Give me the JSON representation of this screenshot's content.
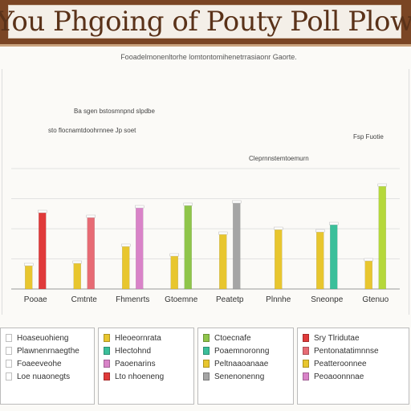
{
  "header": {
    "title": "You Phgoing of Pouty Poll Plow"
  },
  "subtitle": "Fooadelmonenltorhe lomtontomihenetrrasiaonr Gaorte.",
  "notes": {
    "a": "Ba sgen bstosmnpnd slpdbe",
    "b": "sto flocnamtdoohrnnee Jp soet",
    "c": "Fsp Fuotie",
    "d": "Cleprnnstemtoemurn"
  },
  "chart_data": {
    "type": "bar",
    "title": "You Phgoing of Pouty Poll Plow",
    "categories": [
      "Pooae",
      "Cmtnte",
      "Fhmenrts",
      "Gtoemne",
      "Peatetp",
      "Plnnhe",
      "Sneonpe",
      "Gtenuo"
    ],
    "ylim": [
      0,
      100
    ],
    "grid": true,
    "legend_placement": "bottom",
    "series": [
      {
        "color": "#e8c62e",
        "values": [
          20,
          22,
          36,
          28,
          46,
          50,
          48,
          24
        ]
      },
      {
        "color": "#e03a3a",
        "values": [
          64,
          0,
          0,
          0,
          0,
          0,
          0,
          0
        ]
      },
      {
        "color": "#e76b74",
        "values": [
          0,
          60,
          0,
          0,
          0,
          0,
          0,
          0
        ]
      },
      {
        "color": "#d983c8",
        "values": [
          0,
          0,
          68,
          0,
          0,
          0,
          0,
          0
        ]
      },
      {
        "color": "#8fc54a",
        "values": [
          0,
          0,
          0,
          70,
          0,
          0,
          0,
          0
        ]
      },
      {
        "color": "#a5a5a5",
        "values": [
          0,
          0,
          0,
          0,
          72,
          0,
          0,
          0
        ]
      },
      {
        "color": "#3bbf9a",
        "values": [
          0,
          0,
          0,
          0,
          0,
          0,
          54,
          0
        ]
      },
      {
        "color": "#b5d83a",
        "values": [
          0,
          0,
          0,
          0,
          0,
          0,
          0,
          86
        ]
      }
    ]
  },
  "legends": [
    {
      "items": [
        {
          "label": "Hoaseuohieng",
          "color": "#ffffff"
        },
        {
          "label": "Plawnenrnaegthe",
          "color": "#ffffff"
        },
        {
          "label": "Foaeeveohe",
          "color": "#ffffff"
        },
        {
          "label": "Loe nuaonegts",
          "color": "#ffffff"
        }
      ]
    },
    {
      "items": [
        {
          "label": "Hleoeornrata",
          "color": "#e8c62e"
        },
        {
          "label": "Hlectohnd",
          "color": "#3bbf9a"
        },
        {
          "label": "Paoenarins",
          "color": "#d983c8"
        },
        {
          "label": "Lto nhoeneng",
          "color": "#e03a3a"
        }
      ]
    },
    {
      "items": [
        {
          "label": "Ctoecnafe",
          "color": "#8fc54a"
        },
        {
          "label": "Poaemnoronng",
          "color": "#3bbf9a"
        },
        {
          "label": "Peltnaaoanaae",
          "color": "#e8c62e"
        },
        {
          "label": "Senenonenng",
          "color": "#a5a5a5"
        }
      ]
    },
    {
      "items": [
        {
          "label": "Sry Tlridutae",
          "color": "#e03a3a"
        },
        {
          "label": "Pentonatatimnnse",
          "color": "#e76b74"
        },
        {
          "label": "Peatteroonnee",
          "color": "#e8c62e"
        },
        {
          "label": "Peoaoonnnae",
          "color": "#d983c8"
        }
      ]
    }
  ]
}
